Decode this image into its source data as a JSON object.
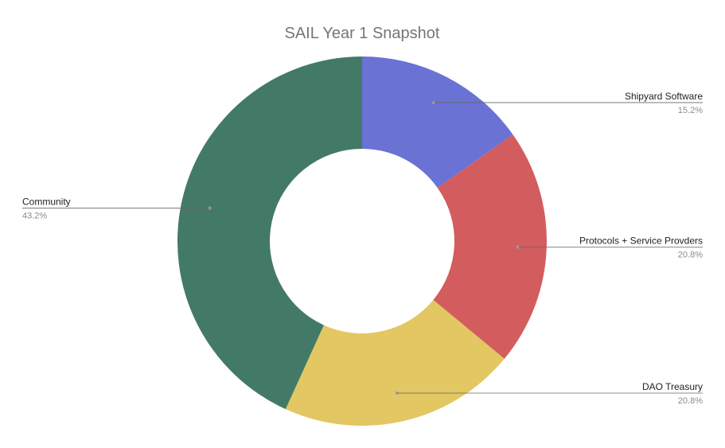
{
  "chart_data": {
    "type": "pie",
    "donut": true,
    "title": "SAIL Year 1 Snapshot",
    "legend": "labels beside slices",
    "slices": [
      {
        "label": "Shipyard Software",
        "value": 15.2,
        "value_label": "15.2%",
        "color": "#6a72d4"
      },
      {
        "label": "Protocols + Service Provders",
        "value": 20.8,
        "value_label": "20.8%",
        "color": "#d35d5e"
      },
      {
        "label": "DAO Treasury",
        "value": 20.8,
        "value_label": "20.8%",
        "color": "#e2c762"
      },
      {
        "label": "Community",
        "value": 43.2,
        "value_label": "43.2%",
        "color": "#437a67"
      }
    ]
  }
}
